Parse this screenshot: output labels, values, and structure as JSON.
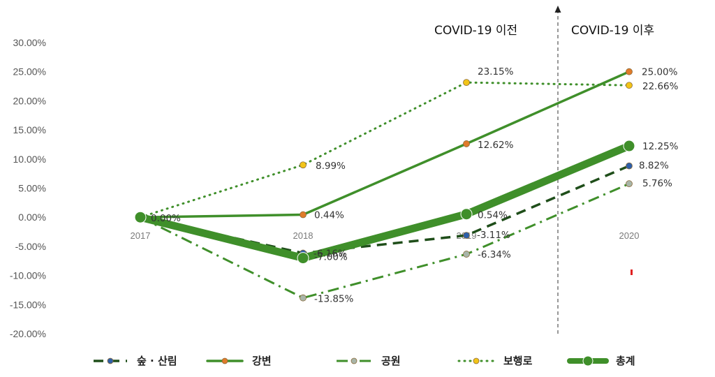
{
  "chart_data": {
    "type": "line",
    "title": "",
    "xlabel": "",
    "ylabel": "",
    "categories": [
      "2017",
      "2018",
      "2019",
      "2020"
    ],
    "ylim": [
      -0.2,
      0.3
    ],
    "yticks": [
      "30.00%",
      "25.00%",
      "20.00%",
      "15.00%",
      "10.00%",
      "5.00%",
      "0.00%",
      "-5.00%",
      "-10.00%",
      "-15.00%",
      "-20.00%"
    ],
    "grid": false,
    "legend_position": "bottom",
    "series": [
      {
        "name": "숲 · 산림",
        "values": [
          0.0,
          -0.0616,
          -0.0311,
          0.0882
        ],
        "labels": [
          "",
          "-6.16%",
          "-3.11%",
          "8.82%"
        ],
        "color": "#1f4e1a",
        "marker_color": "#2e5fa8",
        "style": "dashed"
      },
      {
        "name": "강변",
        "values": [
          0.0,
          0.0044,
          0.1262,
          0.25
        ],
        "labels": [
          "",
          "0.44%",
          "12.62%",
          "25.00%"
        ],
        "color": "#3f8f2a",
        "marker_color": "#e07b2a",
        "style": "solid"
      },
      {
        "name": "공원",
        "values": [
          0.0,
          -0.1385,
          -0.0634,
          0.0576
        ],
        "labels": [
          "",
          "-13.85%",
          "-6.34%",
          "5.76%"
        ],
        "color": "#3f8f2a",
        "marker_color": "#a8b5a8",
        "style": "dashdot"
      },
      {
        "name": "보행로",
        "values": [
          0.0,
          0.0899,
          0.2315,
          0.2266
        ],
        "labels": [
          "",
          "8.99%",
          "23.15%",
          "22.66%"
        ],
        "color": "#3f8f2a",
        "marker_color": "#f2c418",
        "style": "dotted"
      },
      {
        "name": "총계",
        "values": [
          0.0,
          -0.07,
          0.0054,
          0.1225
        ],
        "labels": [
          "0.00%",
          "-7.00%",
          "0.54%",
          "12.25%"
        ],
        "color": "#3f8f2a",
        "marker_color": "#3f8f2a",
        "style": "thick"
      }
    ],
    "annotations": {
      "before": "COVID-19 이전",
      "after": "COVID-19 이후"
    }
  }
}
